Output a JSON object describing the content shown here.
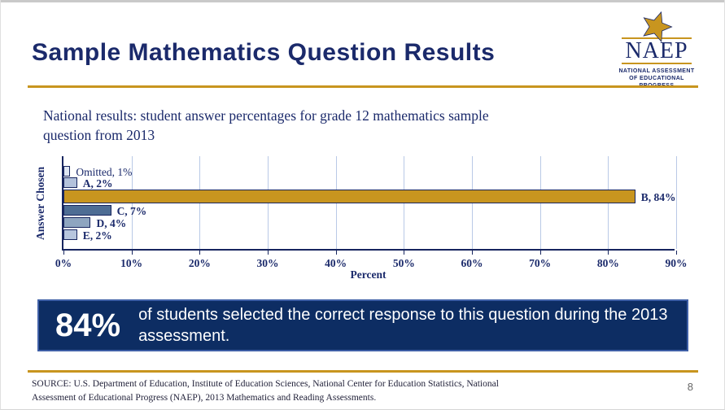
{
  "slide": {
    "title": "Sample Mathematics Question Results",
    "subtitle": "National results: student answer percentages for grade 12 mathematics sample question from 2013",
    "page_number": "8",
    "source_line1": "SOURCE: U.S. Department of Education, Institute of Education Sciences, National Center for Education Statistics, National",
    "source_line2": "Assessment of Educational Progress (NAEP), 2013 Mathematics and Reading Assessments."
  },
  "logo": {
    "name": "NAEP",
    "sub_line1": "NATIONAL ASSESSMENT",
    "sub_line2": "OF EDUCATIONAL",
    "sub_line3": "PROGRESS",
    "star_icon": "star-icon",
    "star_color": "#c8951f"
  },
  "callout": {
    "stat": "84%",
    "text": "of students selected the correct response to this question during the 2013 assessment."
  },
  "colors": {
    "navy_text": "#1b2a6b",
    "axis_navy": "#17255f",
    "gold": "#c8951f",
    "callout_bg": "#0d2d63",
    "callout_border": "#3e5fa6",
    "gridline": "#b9c9e6"
  },
  "chart_data": {
    "type": "bar",
    "orientation": "horizontal",
    "title": "",
    "categories": [
      "Omitted",
      "A",
      "B",
      "C",
      "D",
      "E"
    ],
    "values": [
      1,
      2,
      84,
      7,
      4,
      2
    ],
    "bar_labels": [
      "Omitted, 1%",
      "A, 2%",
      "B, 84%",
      "C, 7%",
      "D, 4%",
      "E, 2%"
    ],
    "bar_colors": [
      "#dfe6f3",
      "#b3c2dc",
      "#c8951f",
      "#4e6d94",
      "#8ea5c0",
      "#b7c6de"
    ],
    "bar_label_bold": [
      false,
      true,
      true,
      true,
      true,
      true
    ],
    "xlabel": "Percent",
    "ylabel": "Answer Chosen",
    "xlim": [
      0,
      90
    ],
    "x_ticks": [
      "0%",
      "10%",
      "20%",
      "30%",
      "40%",
      "50%",
      "60%",
      "70%",
      "80%",
      "90%"
    ],
    "x_tick_values": [
      0,
      10,
      20,
      30,
      40,
      50,
      60,
      70,
      80,
      90
    ],
    "grid": true,
    "legend": false
  }
}
